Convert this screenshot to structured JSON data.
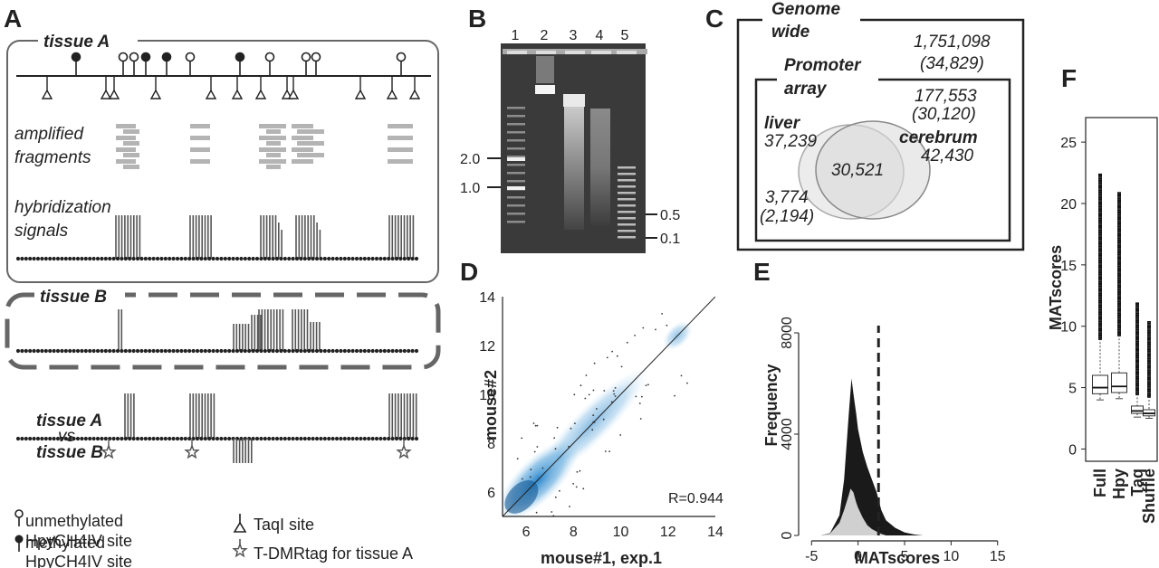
{
  "panels": {
    "A": "A",
    "B": "B",
    "C": "C",
    "D": "D",
    "E": "E",
    "F": "F"
  },
  "panelA": {
    "tissue_a": "tissue A",
    "amplified_1": "amplified",
    "amplified_2": "fragments",
    "hybrid_1": "hybridization",
    "hybrid_2": "signals",
    "tissue_b": "tissue B",
    "vs_a": "tissue A",
    "vs": "vs",
    "vs_b": "tissue B",
    "legend_unmeth_1": "unmethylated",
    "legend_unmeth_2": "HpyCH4IV site",
    "legend_meth_1": "methylated",
    "legend_meth_2": "HpyCH4IV site",
    "legend_taqi": "TaqI site",
    "legend_tdmr": "T-DMRtag for tissue A"
  },
  "panelB": {
    "lanes": [
      "1",
      "2",
      "3",
      "4",
      "5"
    ],
    "left_markers": [
      "2.0",
      "1.0"
    ],
    "right_markers": [
      "0.5",
      "0.1"
    ]
  },
  "panelC": {
    "genome_1": "Genome",
    "genome_2": "wide",
    "genome_count": "1,751,098",
    "genome_sub": "(34,829)",
    "promoter_1": "Promoter",
    "promoter_2": "array",
    "promoter_count": "177,553",
    "promoter_sub": "(30,120)",
    "liver": "liver",
    "liver_count": "37,239",
    "cerebrum": "cerebrum",
    "cerebrum_count": "42,430",
    "overlap": "30,521",
    "outside_count": "3,774",
    "outside_sub": "(2,194)"
  },
  "chart_data": [
    {
      "panel": "D",
      "type": "scatter",
      "xlabel": "mouse#1, exp.1",
      "ylabel": "mouse#2",
      "xticks": [
        6,
        8,
        10,
        12,
        14
      ],
      "yticks": [
        6,
        8,
        10,
        12,
        14
      ],
      "xlim": [
        5,
        14
      ],
      "ylim": [
        5,
        14
      ],
      "annotation": "R=0.944",
      "reference_line": "y = x",
      "density_color": "#3b8fd0"
    },
    {
      "panel": "E",
      "type": "area",
      "xlabel": "MATscores",
      "ylabel": "Frequency",
      "xticks": [
        -5,
        0,
        5,
        10,
        15
      ],
      "yticks": [
        0,
        4000,
        8000
      ],
      "xlim": [
        -6,
        16
      ],
      "ylim": [
        0,
        8000
      ],
      "threshold": 2.2,
      "series": [
        {
          "x": [
            -4,
            -3,
            -2,
            -1.5,
            -1,
            -0.7,
            -0.5,
            -0.2,
            0,
            0.5,
            1,
            1.5,
            2,
            2.5,
            3,
            4,
            5,
            6,
            7
          ],
          "values": [
            0,
            100,
            800,
            2200,
            4800,
            6200,
            5600,
            4800,
            4200,
            3300,
            2700,
            2200,
            1700,
            1000,
            600,
            300,
            120,
            40,
            0
          ]
        },
        {
          "x": [
            -4,
            -3,
            -2,
            -1.5,
            -1,
            -0.8,
            -0.5,
            -0.2,
            0,
            0.5,
            1,
            1.5,
            2,
            2.5,
            3
          ],
          "values": [
            0,
            80,
            500,
            1000,
            1600,
            1850,
            1700,
            1300,
            1100,
            700,
            400,
            250,
            150,
            60,
            0
          ]
        }
      ]
    },
    {
      "panel": "F",
      "type": "box",
      "ylabel": "MATscores",
      "categories": [
        "Full",
        "Hpy",
        "Taq",
        "Shuffle"
      ],
      "yticks": [
        0,
        5,
        10,
        15,
        20,
        25
      ],
      "ylim": [
        -1,
        27
      ],
      "boxes": [
        {
          "min": 4.0,
          "q1": 4.5,
          "median": 5.0,
          "q3": 6.0,
          "max": 9.0,
          "outlier_max": 22.5
        },
        {
          "min": 4.1,
          "q1": 4.6,
          "median": 5.1,
          "q3": 6.2,
          "max": 9.3,
          "outlier_max": 21.0
        },
        {
          "min": 2.6,
          "q1": 2.9,
          "median": 3.1,
          "q3": 3.5,
          "max": 4.5,
          "outlier_max": 12.0
        },
        {
          "min": 2.5,
          "q1": 2.7,
          "median": 2.9,
          "q3": 3.2,
          "max": 4.3,
          "outlier_max": 10.5
        }
      ]
    }
  ]
}
